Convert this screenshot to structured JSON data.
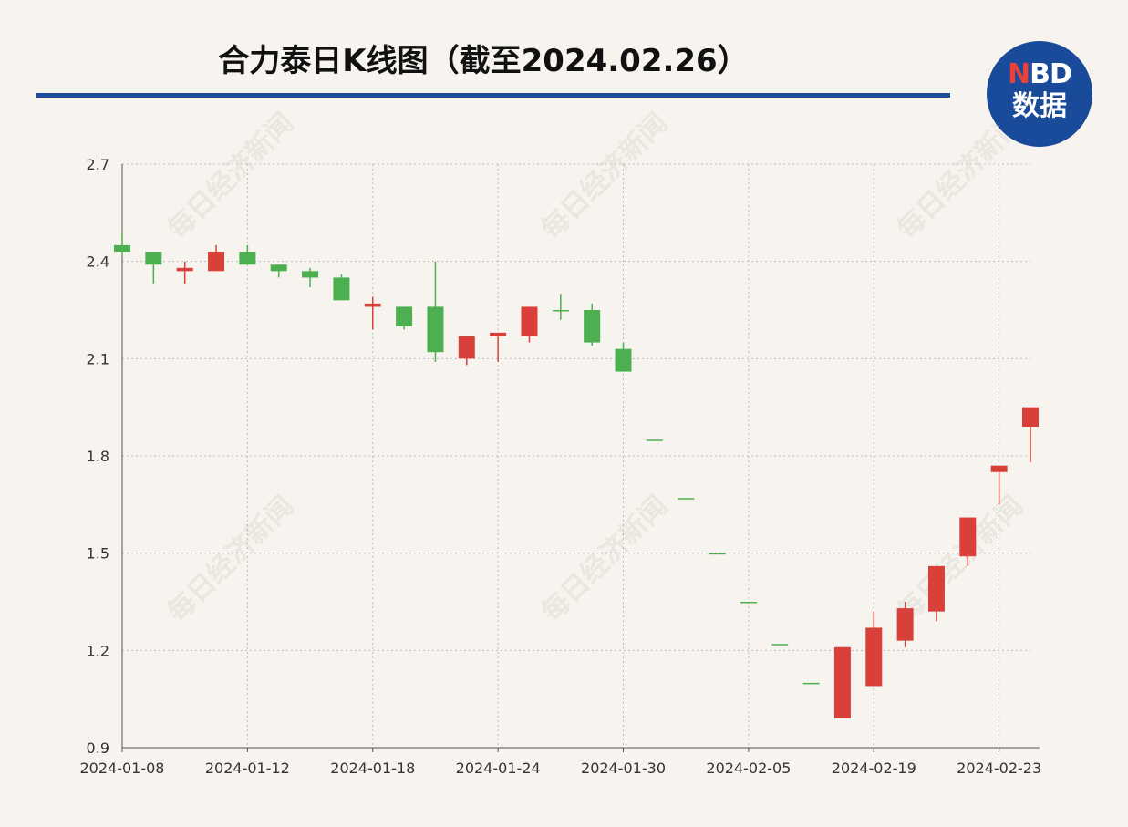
{
  "header": {
    "title": "合力泰日K线图（截至2024.02.26）",
    "logo_top": "NBD",
    "logo_bottom": "数据",
    "watermark": "每日经济新闻"
  },
  "chart_data": {
    "type": "candlestick",
    "categories": [
      "2024-01-08",
      null,
      null,
      null,
      "2024-01-12",
      null,
      null,
      null,
      "2024-01-18",
      null,
      null,
      null,
      "2024-01-24",
      null,
      null,
      null,
      "2024-01-30",
      null,
      null,
      null,
      "2024-02-05",
      null,
      null,
      null,
      "2024-02-19",
      null,
      null,
      null,
      "2024-02-23",
      null
    ],
    "open": [
      2.45,
      2.43,
      2.37,
      2.37,
      2.43,
      2.39,
      2.37,
      2.35,
      2.26,
      2.26,
      2.26,
      2.1,
      2.17,
      2.17,
      2.25,
      2.25,
      2.13,
      1.85,
      1.67,
      1.5,
      1.35,
      1.22,
      1.1,
      0.99,
      1.09,
      1.23,
      1.32,
      1.49,
      1.75,
      1.89
    ],
    "high": [
      2.49,
      2.43,
      2.4,
      2.45,
      2.45,
      2.39,
      2.38,
      2.36,
      2.29,
      2.26,
      2.4,
      2.17,
      2.18,
      2.26,
      2.3,
      2.27,
      2.15,
      1.85,
      1.67,
      1.5,
      1.35,
      1.22,
      1.1,
      1.21,
      1.32,
      1.35,
      1.46,
      1.61,
      1.77,
      1.95
    ],
    "low": [
      2.42,
      2.33,
      2.33,
      2.37,
      2.39,
      2.35,
      2.32,
      2.28,
      2.19,
      2.19,
      2.09,
      2.08,
      2.09,
      2.15,
      2.22,
      2.14,
      2.06,
      1.85,
      1.67,
      1.5,
      1.35,
      1.22,
      1.1,
      0.99,
      1.09,
      1.21,
      1.29,
      1.46,
      1.65,
      1.78
    ],
    "close": [
      2.43,
      2.39,
      2.38,
      2.43,
      2.39,
      2.37,
      2.35,
      2.28,
      2.27,
      2.2,
      2.12,
      2.17,
      2.18,
      2.26,
      2.25,
      2.15,
      2.06,
      1.85,
      1.67,
      1.5,
      1.35,
      1.22,
      1.1,
      1.21,
      1.27,
      1.33,
      1.46,
      1.61,
      1.77,
      1.95
    ],
    "up_color": "#d9403a",
    "down_color": "#4caf50",
    "ylim": [
      0.9,
      2.7
    ],
    "yticks": [
      0.9,
      1.2,
      1.5,
      1.8,
      2.1,
      2.4,
      2.7
    ],
    "grid": true
  }
}
